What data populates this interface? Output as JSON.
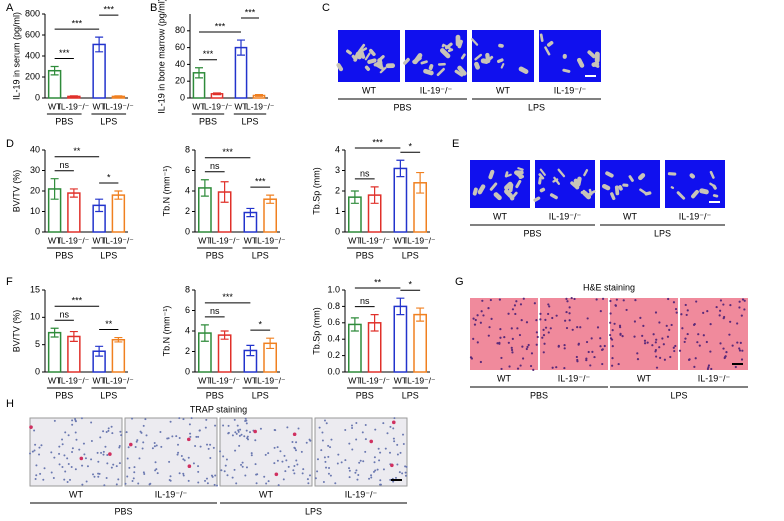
{
  "chart_data": [
    {
      "type": "bar",
      "panel": "A",
      "ylabel": "IL-19 in serum (pg/ml)",
      "categories": [
        "WT",
        "IL-19⁻/⁻",
        "WT",
        "IL-19⁻/⁻"
      ],
      "groups": [
        "PBS",
        "LPS"
      ],
      "values": [
        260,
        15,
        510,
        15
      ],
      "errors": [
        40,
        5,
        70,
        5
      ],
      "colors": [
        "#2e8b3a",
        "#e0302a",
        "#2233cc",
        "#f08020"
      ],
      "ylim": [
        0,
        800
      ],
      "yticks": [
        0,
        200,
        400,
        600,
        800
      ],
      "comparisons": [
        {
          "text": "***",
          "between": [
            0,
            1
          ]
        },
        {
          "text": "***",
          "between": [
            0,
            2
          ]
        },
        {
          "text": "***",
          "between": [
            2,
            3
          ]
        }
      ]
    },
    {
      "type": "bar",
      "panel": "B",
      "ylabel": "IL-19 in bone marrow (pg/ml)",
      "categories": [
        "WT",
        "IL-19⁻/⁻",
        "WT",
        "IL-19⁻/⁻"
      ],
      "groups": [
        "PBS",
        "LPS"
      ],
      "values": [
        30,
        5,
        60,
        3
      ],
      "errors": [
        6,
        1,
        9,
        1
      ],
      "colors": [
        "#2e8b3a",
        "#e0302a",
        "#2233cc",
        "#f08020"
      ],
      "ylim": [
        0,
        100
      ],
      "yticks": [
        0,
        20,
        40,
        60,
        80
      ],
      "comparisons": [
        {
          "text": "***",
          "between": [
            0,
            1
          ]
        },
        {
          "text": "***",
          "between": [
            0,
            2
          ]
        },
        {
          "text": "***",
          "between": [
            2,
            3
          ]
        }
      ]
    },
    {
      "type": "bar",
      "panel": "D",
      "ylabel": "BV/TV (%)",
      "categories": [
        "WT",
        "IL-19⁻/⁻",
        "WT",
        "IL-19⁻/⁻"
      ],
      "groups": [
        "PBS",
        "LPS"
      ],
      "values": [
        21,
        19,
        13,
        18
      ],
      "errors": [
        5,
        2,
        3,
        2
      ],
      "colors": [
        "#2e8b3a",
        "#e0302a",
        "#2233cc",
        "#f08020"
      ],
      "ylim": [
        0,
        40
      ],
      "yticks": [
        0,
        10,
        20,
        30,
        40
      ],
      "comparisons": [
        {
          "text": "ns",
          "between": [
            0,
            1
          ]
        },
        {
          "text": "*",
          "between": [
            2,
            3
          ]
        },
        {
          "text": "**",
          "between": [
            0,
            2
          ]
        }
      ]
    },
    {
      "type": "bar",
      "panel": "",
      "ylabel": "Tb.N (mm⁻¹)",
      "categories": [
        "WT",
        "IL-19⁻/⁻",
        "WT",
        "IL-19⁻/⁻"
      ],
      "groups": [
        "PBS",
        "LPS"
      ],
      "values": [
        4.3,
        3.9,
        1.9,
        3.2
      ],
      "errors": [
        0.8,
        1,
        0.4,
        0.4
      ],
      "colors": [
        "#2e8b3a",
        "#e0302a",
        "#2233cc",
        "#f08020"
      ],
      "ylim": [
        0,
        8
      ],
      "yticks": [
        0,
        2,
        4,
        6,
        8
      ],
      "comparisons": [
        {
          "text": "ns",
          "between": [
            0,
            1
          ]
        },
        {
          "text": "***",
          "between": [
            2,
            3
          ]
        },
        {
          "text": "***",
          "between": [
            0,
            2
          ]
        }
      ]
    },
    {
      "type": "bar",
      "panel": "",
      "ylabel": "Tb.Sp (mm)",
      "categories": [
        "WT",
        "IL-19⁻/⁻",
        "WT",
        "IL-19⁻/⁻"
      ],
      "groups": [
        "PBS",
        "LPS"
      ],
      "values": [
        1.7,
        1.8,
        3.1,
        2.4
      ],
      "errors": [
        0.3,
        0.4,
        0.4,
        0.5
      ],
      "colors": [
        "#2e8b3a",
        "#e0302a",
        "#2233cc",
        "#f08020"
      ],
      "ylim": [
        0,
        4
      ],
      "yticks": [
        0,
        1,
        2,
        3,
        4
      ],
      "comparisons": [
        {
          "text": "ns",
          "between": [
            0,
            1
          ]
        },
        {
          "text": "*",
          "between": [
            2,
            3
          ]
        },
        {
          "text": "***",
          "between": [
            0,
            2
          ]
        }
      ]
    },
    {
      "type": "bar",
      "panel": "F",
      "ylabel": "BV/TV (%)",
      "categories": [
        "WT",
        "IL-19⁻/⁻",
        "WT",
        "IL-19⁻/⁻"
      ],
      "groups": [
        "PBS",
        "LPS"
      ],
      "values": [
        7.2,
        6.5,
        3.8,
        5.9
      ],
      "errors": [
        0.8,
        0.9,
        0.9,
        0.4
      ],
      "colors": [
        "#2e8b3a",
        "#e0302a",
        "#2233cc",
        "#f08020"
      ],
      "ylim": [
        0,
        15
      ],
      "yticks": [
        0,
        5,
        10,
        15
      ],
      "comparisons": [
        {
          "text": "ns",
          "between": [
            0,
            1
          ]
        },
        {
          "text": "**",
          "between": [
            2,
            3
          ]
        },
        {
          "text": "***",
          "between": [
            0,
            2
          ]
        }
      ]
    },
    {
      "type": "bar",
      "panel": "",
      "ylabel": "Tb.N (mm⁻¹)",
      "categories": [
        "WT",
        "IL-19⁻/⁻",
        "WT",
        "IL-19⁻/⁻"
      ],
      "groups": [
        "PBS",
        "LPS"
      ],
      "values": [
        3.8,
        3.6,
        2.1,
        2.8
      ],
      "errors": [
        0.8,
        0.4,
        0.5,
        0.5
      ],
      "colors": [
        "#2e8b3a",
        "#e0302a",
        "#2233cc",
        "#f08020"
      ],
      "ylim": [
        0,
        8
      ],
      "yticks": [
        0,
        2,
        4,
        6,
        8
      ],
      "comparisons": [
        {
          "text": "ns",
          "between": [
            0,
            1
          ]
        },
        {
          "text": "*",
          "between": [
            2,
            3
          ]
        },
        {
          "text": "***",
          "between": [
            0,
            2
          ]
        }
      ]
    },
    {
      "type": "bar",
      "panel": "",
      "ylabel": "Tb.Sp (mm)",
      "categories": [
        "WT",
        "IL-19⁻/⁻",
        "WT",
        "IL-19⁻/⁻"
      ],
      "groups": [
        "PBS",
        "LPS"
      ],
      "values": [
        0.58,
        0.6,
        0.8,
        0.7
      ],
      "errors": [
        0.08,
        0.1,
        0.1,
        0.08
      ],
      "colors": [
        "#2e8b3a",
        "#e0302a",
        "#2233cc",
        "#f08020"
      ],
      "ylim": [
        0,
        1.0
      ],
      "yticks": [
        {
          "value": 0,
          "label": "0.0"
        },
        0.2,
        0.4,
        0.6,
        0.8,
        {
          "value": 1,
          "label": "1.0"
        }
      ],
      "comparisons": [
        {
          "text": "ns",
          "between": [
            0,
            1
          ]
        },
        {
          "text": "*",
          "between": [
            2,
            3
          ]
        },
        {
          "text": "**",
          "between": [
            0,
            2
          ]
        }
      ]
    }
  ],
  "image_panels": [
    {
      "panel": "C",
      "style": "microct",
      "labels": [
        "WT",
        "IL-19⁻/⁻",
        "WT",
        "IL-19⁻/⁻"
      ],
      "groups": [
        "PBS",
        "LPS"
      ]
    },
    {
      "panel": "E",
      "style": "microct",
      "labels": [
        "WT",
        "IL-19⁻/⁻",
        "WT",
        "IL-19⁻/⁻"
      ],
      "groups": [
        "PBS",
        "LPS"
      ]
    },
    {
      "panel": "G",
      "title": "H&E staining",
      "style": "he",
      "labels": [
        "WT",
        "IL-19⁻/⁻",
        "WT",
        "IL-19⁻/⁻"
      ],
      "groups": [
        "PBS",
        "LPS"
      ]
    },
    {
      "panel": "H",
      "title": "TRAP staining",
      "style": "trap",
      "labels": [
        "WT",
        "IL-19⁻/⁻",
        "WT",
        "IL-19⁻/⁻"
      ],
      "groups": [
        "PBS",
        "LPS"
      ]
    }
  ]
}
